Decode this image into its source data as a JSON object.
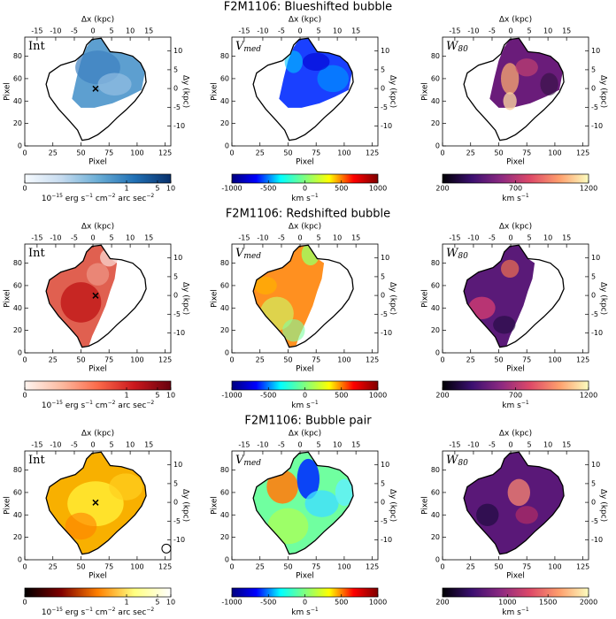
{
  "axes": {
    "xlabel": "Pixel",
    "ylabel": "Pixel",
    "x2label": "Δx (kpc)",
    "y2label": "Δy (kpc)",
    "xlim": [
      0,
      130
    ],
    "ylim": [
      0,
      97
    ],
    "xticks": [
      0,
      25,
      50,
      75,
      100,
      125
    ],
    "yticks": [
      0,
      20,
      40,
      60,
      80
    ],
    "x2lim": [
      -18.3,
      20.9
    ],
    "x2ticks": [
      -15,
      -10,
      -5,
      0,
      5,
      10,
      15
    ],
    "y2lim": [
      -15.3,
      13.7
    ],
    "y2ticks": [
      -10,
      -5,
      0,
      5,
      10
    ]
  },
  "rows": [
    {
      "title": "F2M1106: Blueshifted bubble",
      "panels": [
        {
          "label": {
            "text": "Int"
          },
          "colorbar": {
            "lim": [
              0,
              10
            ],
            "ticks": [
              0,
              1,
              5,
              10
            ],
            "scale": "asinh",
            "colors": [
              "#f7fbff",
              "#c6dbef",
              "#6baed6",
              "#2171b5",
              "#08306b"
            ],
            "units": [
              [
                "10",
                "−15"
              ],
              [
                " erg s",
                "−1"
              ],
              [
                " cm",
                "−2"
              ],
              [
                " arc sec",
                "−2"
              ]
            ]
          }
        },
        {
          "label": {
            "text": "V",
            "sub": "med"
          },
          "colorbar": {
            "lim": [
              -1000,
              1000
            ],
            "ticks": [
              -1000,
              -500,
              0,
              500,
              1000
            ],
            "scale": "linear",
            "colors": [
              "#00007f",
              "#0000ff",
              "#00ffff",
              "#7fff7f",
              "#ffff00",
              "#ff0000",
              "#7f0000"
            ],
            "units": [
              [
                "km s",
                "−1"
              ]
            ]
          }
        },
        {
          "label": {
            "text": "W",
            "sub": "80"
          },
          "colorbar": {
            "lim": [
              200,
              1200
            ],
            "ticks": [
              200,
              700,
              1200
            ],
            "scale": "linear",
            "colors": [
              "#000004",
              "#3b0f70",
              "#8c2981",
              "#de4968",
              "#fe9f6d",
              "#fcfdbf"
            ],
            "units": [
              [
                "km s",
                "−1"
              ]
            ]
          }
        }
      ]
    },
    {
      "title": "F2M1106: Redshifted bubble",
      "panels": [
        {
          "label": {
            "text": "Int"
          },
          "colorbar": {
            "lim": [
              0,
              10
            ],
            "ticks": [
              0,
              1,
              5,
              10
            ],
            "scale": "asinh",
            "colors": [
              "#fff5f0",
              "#fcbba1",
              "#fb6a4a",
              "#cb181d",
              "#67000d"
            ],
            "units": [
              [
                "10",
                "−15"
              ],
              [
                " erg s",
                "−1"
              ],
              [
                " cm",
                "−2"
              ],
              [
                " arc sec",
                "−2"
              ]
            ]
          }
        },
        {
          "label": {
            "text": "V",
            "sub": "med"
          },
          "colorbar": {
            "lim": [
              -1000,
              1000
            ],
            "ticks": [
              -1000,
              -500,
              0,
              500,
              1000
            ],
            "scale": "linear",
            "colors": [
              "#00007f",
              "#0000ff",
              "#00ffff",
              "#7fff7f",
              "#ffff00",
              "#ff0000",
              "#7f0000"
            ],
            "units": [
              [
                "km s",
                "−1"
              ]
            ]
          }
        },
        {
          "label": {
            "text": "W",
            "sub": "80"
          },
          "colorbar": {
            "lim": [
              200,
              1200
            ],
            "ticks": [
              200,
              700,
              1200
            ],
            "scale": "linear",
            "colors": [
              "#000004",
              "#3b0f70",
              "#8c2981",
              "#de4968",
              "#fe9f6d",
              "#fcfdbf"
            ],
            "units": [
              [
                "km s",
                "−1"
              ]
            ]
          }
        }
      ]
    },
    {
      "title": "F2M1106: Bubble pair",
      "panels": [
        {
          "label": {
            "text": "Int"
          },
          "colorbar": {
            "lim": [
              0,
              10
            ],
            "ticks": [
              0,
              1,
              5,
              10
            ],
            "scale": "asinh",
            "colors": [
              "#000000",
              "#800000",
              "#ff8000",
              "#ffff80",
              "#ffffff"
            ],
            "units": [
              [
                "10",
                "−15"
              ],
              [
                " erg s",
                "−1"
              ],
              [
                " cm",
                "−2"
              ],
              [
                " arc sec",
                "−2"
              ]
            ]
          }
        },
        {
          "label": {
            "text": "V",
            "sub": "med"
          },
          "colorbar": {
            "lim": [
              -1000,
              1000
            ],
            "ticks": [
              -1000,
              -500,
              0,
              500,
              1000
            ],
            "scale": "linear",
            "colors": [
              "#00007f",
              "#0000ff",
              "#00ffff",
              "#7fff7f",
              "#ffff00",
              "#ff0000",
              "#7f0000"
            ],
            "units": [
              [
                "km s",
                "−1"
              ]
            ]
          }
        },
        {
          "label": {
            "text": "W",
            "sub": "80"
          },
          "colorbar": {
            "lim": [
              200,
              2000
            ],
            "ticks": [
              200,
              1000,
              1500,
              2000
            ],
            "scale": "linear",
            "colors": [
              "#000004",
              "#3b0f70",
              "#8c2981",
              "#de4968",
              "#fe9f6d",
              "#fcfdbf"
            ],
            "units": [
              [
                "km s",
                "−1"
              ]
            ]
          }
        }
      ]
    }
  ]
}
